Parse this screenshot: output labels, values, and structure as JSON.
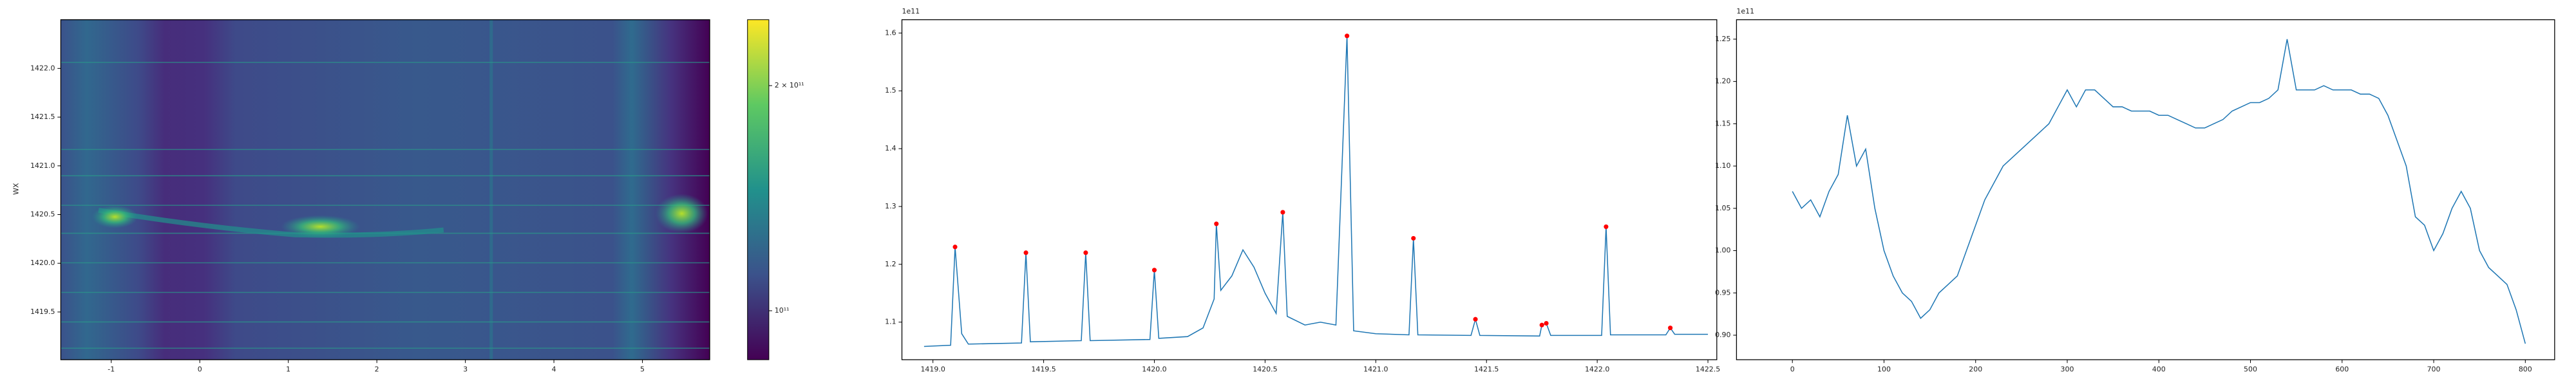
{
  "chart_data": [
    {
      "type": "heatmap",
      "ylabel": "WX",
      "xlim": [
        -1.57,
        5.76
      ],
      "xticks": [
        -1,
        0,
        1,
        2,
        3,
        4,
        5
      ],
      "ylim": [
        1419.01,
        1422.5
      ],
      "yticks": [
        1419.5,
        {
          "value": 1420.0,
          "label": "1420.0"
        },
        1420.5,
        {
          "value": 1421.0,
          "label": "1421.0"
        },
        1421.5,
        {
          "value": 1422.0,
          "label": "1422.0"
        }
      ],
      "colorbar": {
        "scale": "log",
        "lim": [
          86000000000,
          245000000000
        ],
        "ticks": [
          {
            "value": 100000000000,
            "label": "10¹¹"
          },
          {
            "value": 200000000000,
            "label": "2 × 10¹¹"
          }
        ]
      }
    },
    {
      "type": "line",
      "offset_label": "1e11",
      "xlim": [
        1418.86,
        1422.54
      ],
      "xticks": [
        {
          "value": 1419.0,
          "label": "1419.0"
        },
        1419.5,
        {
          "value": 1420.0,
          "label": "1420.0"
        },
        1420.5,
        {
          "value": 1421.0,
          "label": "1421.0"
        },
        1421.5,
        {
          "value": 1422.0,
          "label": "1422.0"
        },
        1422.5
      ],
      "ylim": [
        1.035,
        1.623
      ],
      "yticks": [
        1.1,
        1.2,
        1.3,
        1.4,
        1.5,
        1.6
      ],
      "series": [
        {
          "color": "#1f77b4",
          "x": [
            1418.96,
            1419.08,
            1419.1,
            1419.13,
            1419.16,
            1419.4,
            1419.42,
            1419.44,
            1419.67,
            1419.69,
            1419.71,
            1419.98,
            1420.0,
            1420.02,
            1420.15,
            1420.22,
            1420.27,
            1420.28,
            1420.3,
            1420.35,
            1420.4,
            1420.45,
            1420.5,
            1420.55,
            1420.58,
            1420.6,
            1420.68,
            1420.75,
            1420.82,
            1420.87,
            1420.9,
            1421.0,
            1421.15,
            1421.17,
            1421.19,
            1421.43,
            1421.45,
            1421.47,
            1421.74,
            1421.75,
            1421.77,
            1421.79,
            1422.02,
            1422.04,
            1422.06,
            1422.31,
            1422.33,
            1422.35,
            1422.5
          ],
          "values": [
            1.058,
            1.06,
            1.23,
            1.08,
            1.062,
            1.064,
            1.22,
            1.066,
            1.068,
            1.22,
            1.068,
            1.07,
            1.19,
            1.072,
            1.075,
            1.09,
            1.14,
            1.27,
            1.155,
            1.18,
            1.225,
            1.195,
            1.15,
            1.115,
            1.29,
            1.11,
            1.095,
            1.1,
            1.095,
            1.595,
            1.085,
            1.08,
            1.078,
            1.245,
            1.078,
            1.077,
            1.105,
            1.077,
            1.076,
            1.095,
            1.098,
            1.077,
            1.077,
            1.265,
            1.078,
            1.078,
            1.09,
            1.079,
            1.079
          ]
        }
      ],
      "peaks": {
        "color": "#ff0000",
        "x": [
          1419.1,
          1419.42,
          1419.69,
          1420.0,
          1420.28,
          1420.58,
          1420.87,
          1421.17,
          1421.45,
          1421.75,
          1421.77,
          1422.04,
          1422.33
        ],
        "values": [
          1.23,
          1.22,
          1.22,
          1.19,
          1.27,
          1.29,
          1.595,
          1.245,
          1.105,
          1.095,
          1.098,
          1.265,
          1.09
        ]
      }
    },
    {
      "type": "line",
      "offset_label": "1e11",
      "xlim": [
        -61,
        832
      ],
      "xticks": [
        0,
        100,
        200,
        300,
        400,
        500,
        600,
        700,
        800
      ],
      "ylim": [
        0.871,
        1.273
      ],
      "yticks": [
        {
          "value": 0.9,
          "label": "0.90"
        },
        0.95,
        {
          "value": 1.0,
          "label": "1.00"
        },
        1.05,
        {
          "value": 1.1,
          "label": "1.10"
        },
        1.15,
        {
          "value": 1.2,
          "label": "1.20"
        },
        1.25
      ],
      "series": [
        {
          "color": "#1f77b4",
          "x": [
            0,
            10,
            20,
            30,
            40,
            50,
            60,
            70,
            80,
            90,
            100,
            110,
            120,
            130,
            140,
            150,
            160,
            170,
            180,
            190,
            200,
            210,
            220,
            230,
            240,
            250,
            260,
            270,
            280,
            290,
            300,
            310,
            320,
            330,
            340,
            350,
            360,
            370,
            380,
            390,
            400,
            410,
            420,
            430,
            440,
            450,
            460,
            470,
            480,
            490,
            500,
            510,
            520,
            530,
            540,
            550,
            560,
            570,
            580,
            590,
            600,
            610,
            620,
            630,
            640,
            650,
            660,
            670,
            680,
            690,
            700,
            710,
            720,
            730,
            740,
            750,
            760,
            770,
            780,
            790,
            800
          ],
          "values": [
            1.07,
            1.05,
            1.06,
            1.04,
            1.07,
            1.09,
            1.16,
            1.1,
            1.12,
            1.05,
            1.0,
            0.97,
            0.95,
            0.94,
            0.92,
            0.93,
            0.95,
            0.96,
            0.97,
            1.0,
            1.03,
            1.06,
            1.08,
            1.1,
            1.11,
            1.12,
            1.13,
            1.14,
            1.15,
            1.17,
            1.19,
            1.17,
            1.19,
            1.19,
            1.18,
            1.17,
            1.17,
            1.165,
            1.165,
            1.165,
            1.16,
            1.16,
            1.155,
            1.15,
            1.145,
            1.145,
            1.15,
            1.155,
            1.165,
            1.17,
            1.175,
            1.175,
            1.18,
            1.19,
            1.25,
            1.19,
            1.19,
            1.19,
            1.195,
            1.19,
            1.19,
            1.19,
            1.185,
            1.185,
            1.18,
            1.16,
            1.13,
            1.1,
            1.04,
            1.03,
            1.0,
            1.02,
            1.05,
            1.07,
            1.05,
            1.0,
            0.98,
            0.97,
            0.96,
            0.93,
            0.89
          ]
        }
      ]
    }
  ]
}
